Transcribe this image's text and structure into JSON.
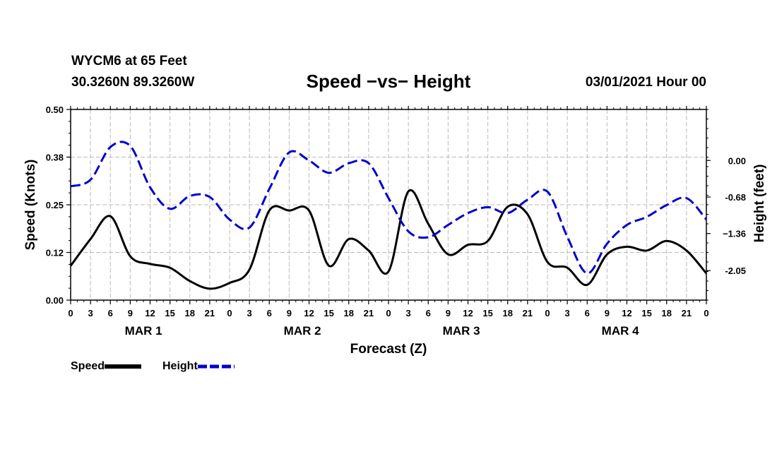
{
  "header": {
    "station": "WYCM6 at 65 Feet",
    "coordinates": "30.3260N 89.3260W",
    "title": "Speed −vs− Height",
    "datetime": "03/01/2021 Hour 00"
  },
  "colors": {
    "speed": "#000000",
    "height": "#0000cc",
    "grid": "#bbbbbb"
  },
  "chart_data": {
    "type": "line",
    "title": "Speed −vs− Height",
    "xlabel": "Forecast (Z)",
    "ylabel_left": "Speed (Knots)",
    "ylabel_right": "Height (feet)",
    "x_range": [
      0,
      96
    ],
    "x_tick_labels": [
      "0",
      "3",
      "6",
      "9",
      "12",
      "15",
      "18",
      "21",
      "0",
      "3",
      "6",
      "9",
      "12",
      "15",
      "18",
      "21",
      "0",
      "3",
      "6",
      "9",
      "12",
      "15",
      "18",
      "21",
      "0",
      "3",
      "6",
      "9",
      "12",
      "15",
      "18",
      "21",
      "0"
    ],
    "day_labels": [
      "MAR 1",
      "MAR 2",
      "MAR 3",
      "MAR 4"
    ],
    "left_axis": {
      "range": [
        0,
        0.5
      ],
      "ticks": [
        "0.00",
        "0.12",
        "0.25",
        "0.38",
        "0.50"
      ]
    },
    "right_axis": {
      "range": [
        -2.6,
        0.95
      ],
      "ticks": [
        "-2.05",
        "−1.36",
        "-0.68",
        "0.00"
      ],
      "tick_values": [
        -2.05,
        -1.36,
        -0.68,
        0.0
      ]
    },
    "grid": true,
    "series": [
      {
        "name": "Speed",
        "axis": "left",
        "style": "solid",
        "points": [
          [
            0,
            0.09
          ],
          [
            3,
            0.16
          ],
          [
            6,
            0.22
          ],
          [
            9,
            0.115
          ],
          [
            12,
            0.095
          ],
          [
            15,
            0.085
          ],
          [
            18,
            0.05
          ],
          [
            21,
            0.03
          ],
          [
            24,
            0.045
          ],
          [
            27,
            0.08
          ],
          [
            30,
            0.235
          ],
          [
            33,
            0.235
          ],
          [
            36,
            0.235
          ],
          [
            39,
            0.09
          ],
          [
            42,
            0.16
          ],
          [
            45,
            0.13
          ],
          [
            48,
            0.075
          ],
          [
            51,
            0.285
          ],
          [
            54,
            0.2
          ],
          [
            57,
            0.12
          ],
          [
            60,
            0.145
          ],
          [
            63,
            0.155
          ],
          [
            66,
            0.245
          ],
          [
            69,
            0.225
          ],
          [
            72,
            0.1
          ],
          [
            75,
            0.085
          ],
          [
            78,
            0.04
          ],
          [
            81,
            0.12
          ],
          [
            84,
            0.14
          ],
          [
            87,
            0.13
          ],
          [
            90,
            0.155
          ],
          [
            93,
            0.13
          ],
          [
            96,
            0.07
          ]
        ]
      },
      {
        "name": "Height",
        "axis": "right",
        "style": "dashed",
        "points": [
          [
            0,
            -0.48
          ],
          [
            3,
            -0.36
          ],
          [
            6,
            0.25
          ],
          [
            9,
            0.27
          ],
          [
            12,
            -0.5
          ],
          [
            15,
            -0.9
          ],
          [
            18,
            -0.66
          ],
          [
            21,
            -0.68
          ],
          [
            24,
            -1.1
          ],
          [
            27,
            -1.25
          ],
          [
            30,
            -0.53
          ],
          [
            33,
            0.15
          ],
          [
            36,
            0.0
          ],
          [
            39,
            -0.23
          ],
          [
            42,
            -0.05
          ],
          [
            45,
            -0.05
          ],
          [
            48,
            -0.7
          ],
          [
            51,
            -1.32
          ],
          [
            54,
            -1.43
          ],
          [
            57,
            -1.2
          ],
          [
            60,
            -0.98
          ],
          [
            63,
            -0.87
          ],
          [
            66,
            -0.98
          ],
          [
            69,
            -0.73
          ],
          [
            72,
            -0.58
          ],
          [
            75,
            -1.42
          ],
          [
            78,
            -2.1
          ],
          [
            81,
            -1.55
          ],
          [
            84,
            -1.2
          ],
          [
            87,
            -1.05
          ],
          [
            90,
            -0.83
          ],
          [
            93,
            -0.7
          ],
          [
            96,
            -1.1
          ]
        ]
      }
    ]
  },
  "legend": {
    "speed_label": "Speed",
    "height_label": "Height"
  }
}
